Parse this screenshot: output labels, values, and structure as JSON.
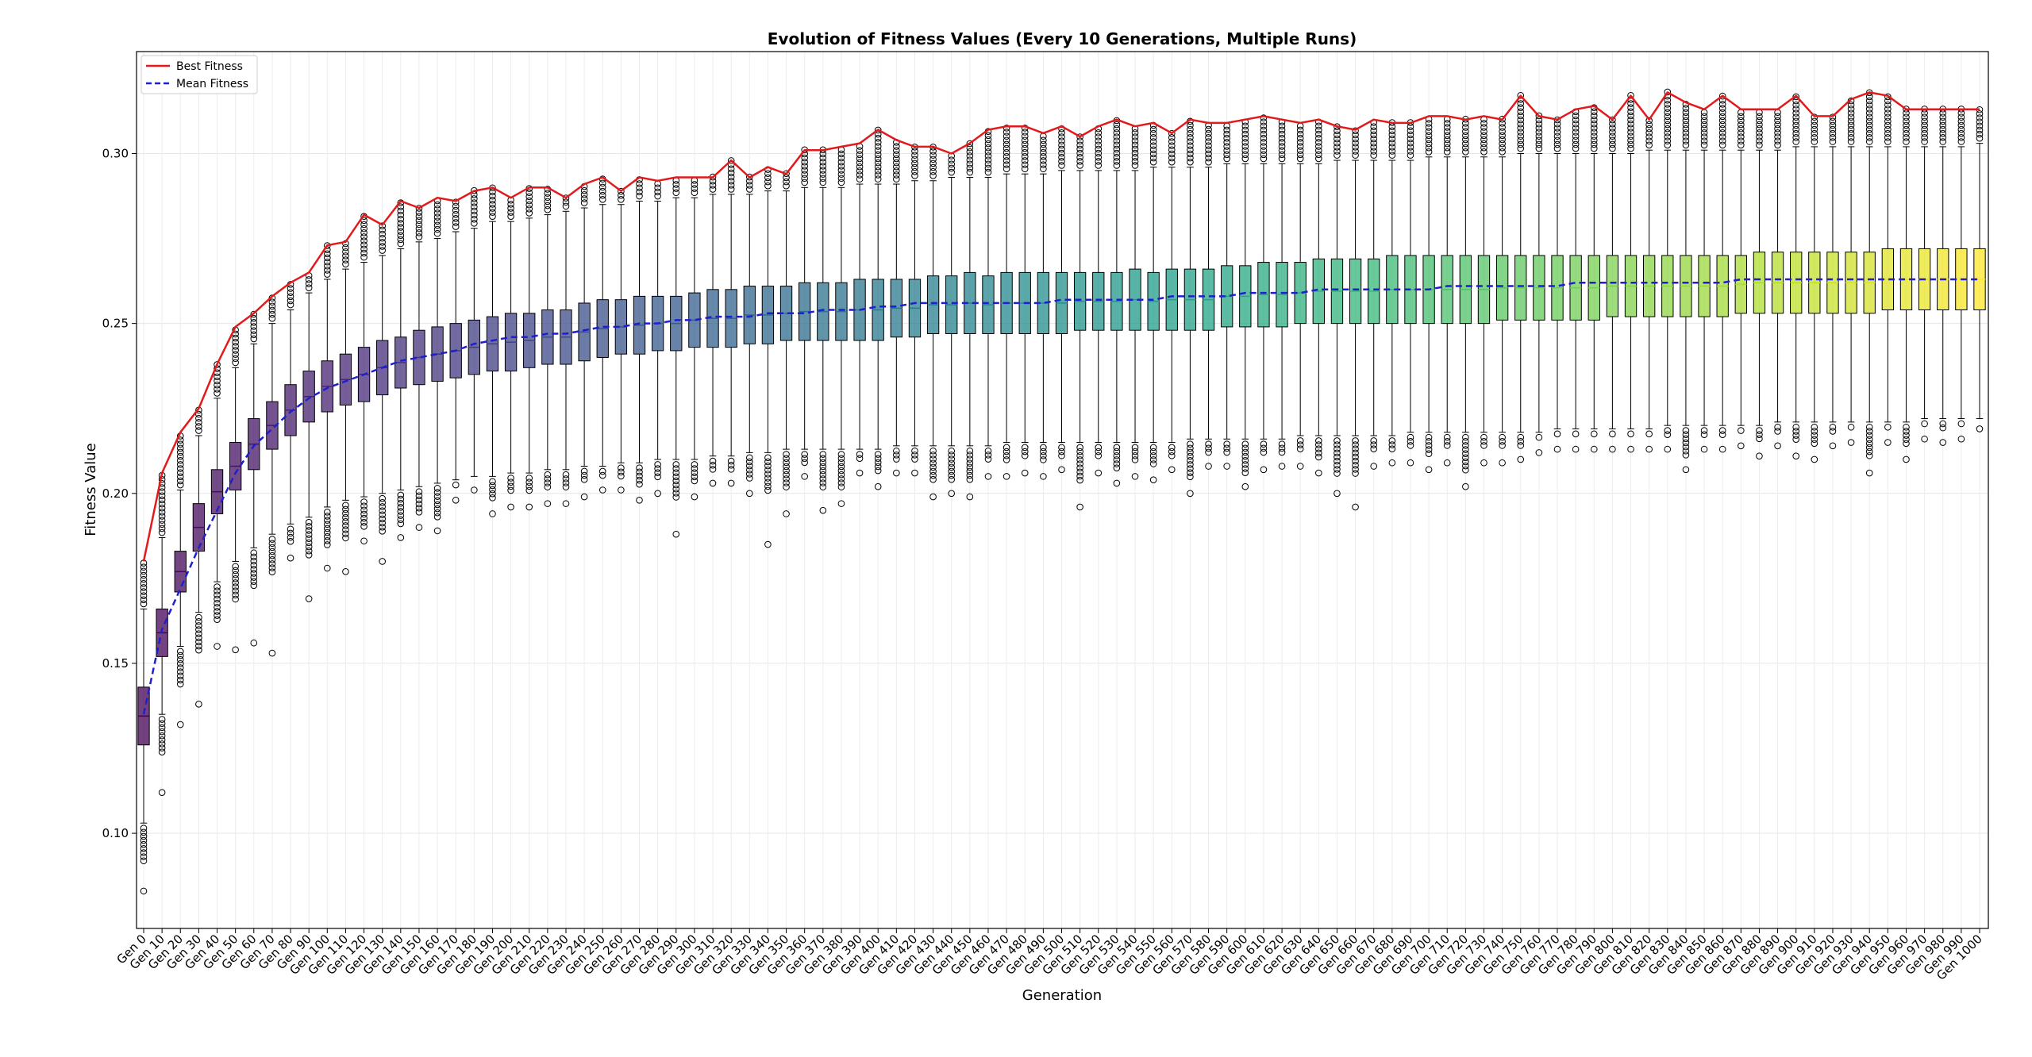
{
  "chart_data": {
    "type": "box",
    "title": "Evolution of Fitness Values (Every 10 Generations, Multiple Runs)",
    "xlabel": "Generation",
    "ylabel": "Fitness Value",
    "ylim": [
      0.072,
      0.33
    ],
    "yticks": [
      0.1,
      0.15,
      0.2,
      0.25,
      0.3
    ],
    "ytick_labels": [
      "0.10",
      "0.15",
      "0.20",
      "0.25",
      "0.30"
    ],
    "grid": true,
    "legend": {
      "placement": "top-left",
      "entries": [
        {
          "name": "Best Fitness",
          "color": "#e31a1c",
          "style": "solid"
        },
        {
          "name": "Mean Fitness",
          "color": "#1f1fcf",
          "style": "dashed"
        }
      ]
    },
    "colormap": "viridis",
    "categories": [
      "Gen 0",
      "Gen 10",
      "Gen 20",
      "Gen 30",
      "Gen 40",
      "Gen 50",
      "Gen 60",
      "Gen 70",
      "Gen 80",
      "Gen 90",
      "Gen 100",
      "Gen 110",
      "Gen 120",
      "Gen 130",
      "Gen 140",
      "Gen 150",
      "Gen 160",
      "Gen 170",
      "Gen 180",
      "Gen 190",
      "Gen 200",
      "Gen 210",
      "Gen 220",
      "Gen 230",
      "Gen 240",
      "Gen 250",
      "Gen 260",
      "Gen 270",
      "Gen 280",
      "Gen 290",
      "Gen 300",
      "Gen 310",
      "Gen 320",
      "Gen 330",
      "Gen 340",
      "Gen 350",
      "Gen 360",
      "Gen 370",
      "Gen 380",
      "Gen 390",
      "Gen 400",
      "Gen 410",
      "Gen 420",
      "Gen 430",
      "Gen 440",
      "Gen 450",
      "Gen 460",
      "Gen 470",
      "Gen 480",
      "Gen 490",
      "Gen 500",
      "Gen 510",
      "Gen 520",
      "Gen 530",
      "Gen 540",
      "Gen 550",
      "Gen 560",
      "Gen 570",
      "Gen 580",
      "Gen 590",
      "Gen 600",
      "Gen 610",
      "Gen 620",
      "Gen 630",
      "Gen 640",
      "Gen 650",
      "Gen 660",
      "Gen 670",
      "Gen 680",
      "Gen 690",
      "Gen 700",
      "Gen 710",
      "Gen 720",
      "Gen 730",
      "Gen 740",
      "Gen 750",
      "Gen 760",
      "Gen 770",
      "Gen 780",
      "Gen 790",
      "Gen 800",
      "Gen 810",
      "Gen 820",
      "Gen 830",
      "Gen 840",
      "Gen 850",
      "Gen 860",
      "Gen 870",
      "Gen 880",
      "Gen 890",
      "Gen 900",
      "Gen 910",
      "Gen 920",
      "Gen 930",
      "Gen 940",
      "Gen 950",
      "Gen 960",
      "Gen 970",
      "Gen 980",
      "Gen 990",
      "Gen 1000"
    ],
    "box_q1": [
      0.126,
      0.152,
      0.171,
      0.183,
      0.194,
      0.201,
      0.207,
      0.213,
      0.217,
      0.221,
      0.224,
      0.226,
      0.227,
      0.229,
      0.231,
      0.232,
      0.233,
      0.234,
      0.235,
      0.236,
      0.236,
      0.237,
      0.238,
      0.238,
      0.239,
      0.24,
      0.241,
      0.241,
      0.242,
      0.242,
      0.243,
      0.243,
      0.243,
      0.244,
      0.244,
      0.245,
      0.245,
      0.245,
      0.245,
      0.245,
      0.245,
      0.246,
      0.246,
      0.247,
      0.247,
      0.247,
      0.247,
      0.247,
      0.247,
      0.247,
      0.247,
      0.248,
      0.248,
      0.248,
      0.248,
      0.248,
      0.248,
      0.248,
      0.248,
      0.249,
      0.249,
      0.249,
      0.249,
      0.25,
      0.25,
      0.25,
      0.25,
      0.25,
      0.25,
      0.25,
      0.25,
      0.25,
      0.25,
      0.25,
      0.251,
      0.251,
      0.251,
      0.251,
      0.251,
      0.251,
      0.252,
      0.252,
      0.252,
      0.252,
      0.252,
      0.252,
      0.252,
      0.253,
      0.253,
      0.253,
      0.253,
      0.253,
      0.253,
      0.253,
      0.253,
      0.254,
      0.254,
      0.254,
      0.254,
      0.254,
      0.254
    ],
    "box_q3": [
      0.143,
      0.166,
      0.183,
      0.197,
      0.207,
      0.215,
      0.222,
      0.227,
      0.232,
      0.236,
      0.239,
      0.241,
      0.243,
      0.245,
      0.246,
      0.248,
      0.249,
      0.25,
      0.251,
      0.252,
      0.253,
      0.253,
      0.254,
      0.254,
      0.256,
      0.257,
      0.257,
      0.258,
      0.258,
      0.258,
      0.259,
      0.26,
      0.26,
      0.261,
      0.261,
      0.261,
      0.262,
      0.262,
      0.262,
      0.263,
      0.263,
      0.263,
      0.263,
      0.264,
      0.264,
      0.265,
      0.264,
      0.265,
      0.265,
      0.265,
      0.265,
      0.265,
      0.265,
      0.265,
      0.266,
      0.265,
      0.266,
      0.266,
      0.266,
      0.267,
      0.267,
      0.268,
      0.268,
      0.268,
      0.269,
      0.269,
      0.269,
      0.269,
      0.27,
      0.27,
      0.27,
      0.27,
      0.27,
      0.27,
      0.27,
      0.27,
      0.27,
      0.27,
      0.27,
      0.27,
      0.27,
      0.27,
      0.27,
      0.27,
      0.27,
      0.27,
      0.27,
      0.27,
      0.271,
      0.271,
      0.271,
      0.271,
      0.271,
      0.271,
      0.271,
      0.272,
      0.272,
      0.272,
      0.272,
      0.272,
      0.272
    ],
    "whisker_low": [
      0.103,
      0.135,
      0.155,
      0.165,
      0.174,
      0.18,
      0.184,
      0.188,
      0.191,
      0.193,
      0.196,
      0.198,
      0.199,
      0.2,
      0.201,
      0.202,
      0.203,
      0.204,
      0.205,
      0.205,
      0.206,
      0.206,
      0.207,
      0.207,
      0.208,
      0.208,
      0.209,
      0.209,
      0.21,
      0.21,
      0.21,
      0.211,
      0.211,
      0.212,
      0.212,
      0.213,
      0.213,
      0.213,
      0.213,
      0.213,
      0.213,
      0.214,
      0.214,
      0.214,
      0.214,
      0.214,
      0.214,
      0.215,
      0.215,
      0.215,
      0.215,
      0.215,
      0.215,
      0.215,
      0.215,
      0.215,
      0.215,
      0.216,
      0.216,
      0.216,
      0.216,
      0.216,
      0.216,
      0.217,
      0.217,
      0.217,
      0.217,
      0.217,
      0.217,
      0.218,
      0.218,
      0.218,
      0.218,
      0.218,
      0.218,
      0.218,
      0.218,
      0.219,
      0.219,
      0.219,
      0.219,
      0.219,
      0.219,
      0.22,
      0.22,
      0.22,
      0.22,
      0.22,
      0.22,
      0.221,
      0.221,
      0.221,
      0.221,
      0.221,
      0.221,
      0.221,
      0.221,
      0.222,
      0.222,
      0.222,
      0.222
    ],
    "whisker_high": [
      0.166,
      0.187,
      0.201,
      0.217,
      0.228,
      0.237,
      0.244,
      0.25,
      0.254,
      0.259,
      0.263,
      0.266,
      0.268,
      0.27,
      0.272,
      0.274,
      0.275,
      0.277,
      0.278,
      0.28,
      0.28,
      0.281,
      0.282,
      0.283,
      0.284,
      0.285,
      0.285,
      0.286,
      0.286,
      0.287,
      0.287,
      0.288,
      0.288,
      0.288,
      0.289,
      0.289,
      0.29,
      0.29,
      0.29,
      0.291,
      0.291,
      0.291,
      0.292,
      0.292,
      0.293,
      0.293,
      0.293,
      0.294,
      0.294,
      0.294,
      0.295,
      0.295,
      0.295,
      0.295,
      0.295,
      0.296,
      0.296,
      0.296,
      0.296,
      0.297,
      0.297,
      0.297,
      0.297,
      0.297,
      0.297,
      0.298,
      0.298,
      0.298,
      0.298,
      0.298,
      0.299,
      0.299,
      0.299,
      0.299,
      0.299,
      0.3,
      0.3,
      0.3,
      0.3,
      0.3,
      0.3,
      0.3,
      0.301,
      0.301,
      0.301,
      0.301,
      0.301,
      0.301,
      0.301,
      0.301,
      0.302,
      0.302,
      0.302,
      0.302,
      0.302,
      0.302,
      0.302,
      0.302,
      0.302,
      0.302,
      0.303
    ],
    "best_fitness": [
      0.18,
      0.206,
      0.218,
      0.225,
      0.238,
      0.249,
      0.253,
      0.258,
      0.262,
      0.265,
      0.273,
      0.274,
      0.282,
      0.279,
      0.286,
      0.284,
      0.287,
      0.286,
      0.289,
      0.29,
      0.287,
      0.29,
      0.29,
      0.287,
      0.291,
      0.293,
      0.289,
      0.293,
      0.292,
      0.293,
      0.293,
      0.293,
      0.298,
      0.293,
      0.296,
      0.294,
      0.301,
      0.301,
      0.302,
      0.303,
      0.307,
      0.304,
      0.302,
      0.302,
      0.3,
      0.303,
      0.307,
      0.308,
      0.308,
      0.306,
      0.308,
      0.305,
      0.308,
      0.31,
      0.308,
      0.309,
      0.306,
      0.31,
      0.309,
      0.309,
      0.31,
      0.311,
      0.31,
      0.309,
      0.31,
      0.308,
      0.307,
      0.31,
      0.309,
      0.309,
      0.311,
      0.311,
      0.31,
      0.311,
      0.31,
      0.317,
      0.311,
      0.31,
      0.313,
      0.314,
      0.31,
      0.317,
      0.31,
      0.318,
      0.315,
      0.313,
      0.317,
      0.313,
      0.313,
      0.313,
      0.317,
      0.311,
      0.311,
      0.316,
      0.318,
      0.317,
      0.313,
      0.313,
      0.313,
      0.313,
      0.313
    ],
    "mean_fitness": [
      0.135,
      0.16,
      0.172,
      0.184,
      0.195,
      0.206,
      0.214,
      0.219,
      0.224,
      0.228,
      0.231,
      0.233,
      0.235,
      0.237,
      0.239,
      0.24,
      0.241,
      0.242,
      0.244,
      0.245,
      0.246,
      0.246,
      0.247,
      0.247,
      0.248,
      0.249,
      0.249,
      0.25,
      0.25,
      0.251,
      0.251,
      0.252,
      0.252,
      0.252,
      0.253,
      0.253,
      0.253,
      0.254,
      0.254,
      0.254,
      0.255,
      0.255,
      0.256,
      0.256,
      0.256,
      0.256,
      0.256,
      0.256,
      0.256,
      0.256,
      0.257,
      0.257,
      0.257,
      0.257,
      0.257,
      0.257,
      0.258,
      0.258,
      0.258,
      0.258,
      0.259,
      0.259,
      0.259,
      0.259,
      0.26,
      0.26,
      0.26,
      0.26,
      0.26,
      0.26,
      0.26,
      0.261,
      0.261,
      0.261,
      0.261,
      0.261,
      0.261,
      0.261,
      0.262,
      0.262,
      0.262,
      0.262,
      0.262,
      0.262,
      0.262,
      0.262,
      0.262,
      0.263,
      0.263,
      0.263,
      0.263,
      0.263,
      0.263,
      0.263,
      0.263,
      0.263,
      0.263,
      0.263,
      0.263,
      0.263,
      0.263
    ],
    "min_outlier": [
      0.083,
      0.112,
      0.132,
      0.138,
      0.155,
      0.154,
      0.156,
      0.153,
      0.181,
      0.169,
      0.178,
      0.177,
      0.186,
      0.18,
      0.187,
      0.19,
      0.189,
      0.198,
      0.201,
      0.194,
      0.196,
      0.196,
      0.197,
      0.197,
      0.199,
      0.201,
      0.201,
      0.198,
      0.2,
      0.188,
      0.199,
      0.203,
      0.203,
      0.2,
      0.185,
      0.194,
      0.205,
      0.195,
      0.197,
      0.206,
      0.202,
      0.206,
      0.206,
      0.199,
      0.2,
      0.199,
      0.205,
      0.205,
      0.206,
      0.205,
      0.207,
      0.196,
      0.206,
      0.203,
      0.205,
      0.204,
      0.207,
      0.2,
      0.208,
      0.208,
      0.202,
      0.207,
      0.208,
      0.208,
      0.206,
      0.2,
      0.196,
      0.208,
      0.209,
      0.209,
      0.207,
      0.209,
      0.202,
      0.209,
      0.209,
      0.21,
      0.212,
      0.213,
      0.213,
      0.213,
      0.213,
      0.213,
      0.213,
      0.213,
      0.207,
      0.213,
      0.213,
      0.214,
      0.211,
      0.214,
      0.211,
      0.21,
      0.214,
      0.215,
      0.206,
      0.215,
      0.21,
      0.216,
      0.215,
      0.216,
      0.219
    ]
  }
}
